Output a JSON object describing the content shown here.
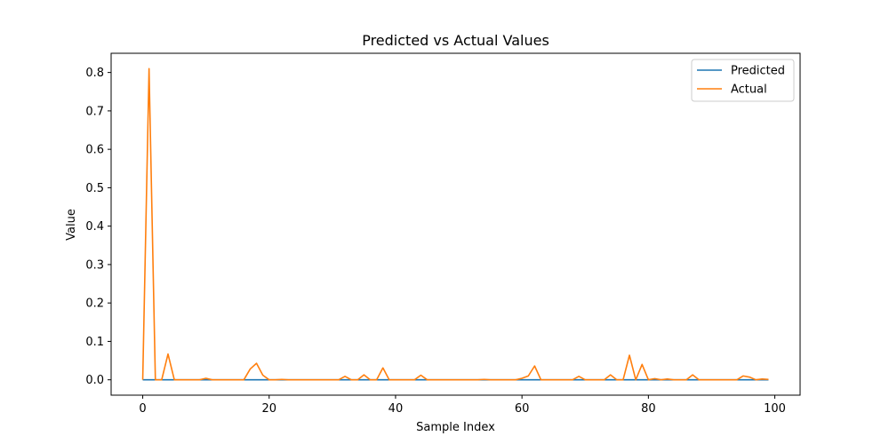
{
  "chart_data": {
    "type": "line",
    "title": "Predicted vs Actual Values",
    "xlabel": "Sample Index",
    "ylabel": "Value",
    "xlim": [
      -5,
      104
    ],
    "ylim": [
      -0.04,
      0.85
    ],
    "xticks": [
      0,
      20,
      40,
      60,
      80,
      100
    ],
    "xtick_labels": [
      "0",
      "20",
      "40",
      "60",
      "80",
      "100"
    ],
    "yticks": [
      0.0,
      0.1,
      0.2,
      0.3,
      0.4,
      0.5,
      0.6,
      0.7,
      0.8
    ],
    "ytick_labels": [
      "0.0",
      "0.1",
      "0.2",
      "0.3",
      "0.4",
      "0.5",
      "0.6",
      "0.7",
      "0.8"
    ],
    "grid": false,
    "legend_position": "top-right",
    "series": [
      {
        "name": "Predicted",
        "color": "#1f77b4",
        "x": [
          0,
          99
        ],
        "y": [
          0,
          0
        ]
      },
      {
        "name": "Actual",
        "color": "#ff7f0e",
        "x": [
          0,
          1,
          2,
          3,
          4,
          5,
          6,
          7,
          8,
          9,
          10,
          11,
          12,
          13,
          14,
          15,
          16,
          17,
          18,
          19,
          20,
          21,
          22,
          23,
          24,
          25,
          26,
          27,
          28,
          29,
          30,
          31,
          32,
          33,
          34,
          35,
          36,
          37,
          38,
          39,
          40,
          41,
          42,
          43,
          44,
          45,
          46,
          47,
          48,
          49,
          50,
          51,
          52,
          53,
          54,
          55,
          56,
          57,
          58,
          59,
          60,
          61,
          62,
          63,
          64,
          65,
          66,
          67,
          68,
          69,
          70,
          71,
          72,
          73,
          74,
          75,
          76,
          77,
          78,
          79,
          80,
          81,
          82,
          83,
          84,
          85,
          86,
          87,
          88,
          89,
          90,
          91,
          92,
          93,
          94,
          95,
          96,
          97,
          98,
          99
        ],
        "y": [
          0.0,
          0.81,
          0.0,
          0.0,
          0.067,
          0.0,
          0.0,
          0.0,
          0.0,
          0.0,
          0.004,
          0.0,
          0.0,
          0.0,
          0.0,
          0.0,
          0.0,
          0.028,
          0.043,
          0.012,
          0.0,
          0.0,
          0.001,
          0.0,
          0.0,
          0.0,
          0.0,
          0.0,
          0.0,
          0.0,
          0.0,
          0.0,
          0.009,
          0.0,
          0.0,
          0.013,
          0.0,
          0.0,
          0.031,
          0.0,
          0.0,
          0.0,
          0.0,
          0.0,
          0.012,
          0.0,
          0.0,
          0.0,
          0.0,
          0.0,
          0.0,
          0.0,
          0.0,
          0.0,
          0.001,
          0.0,
          0.0,
          0.0,
          0.0,
          0.0,
          0.004,
          0.01,
          0.036,
          0.0,
          0.0,
          0.0,
          0.0,
          0.0,
          0.0,
          0.009,
          0.0,
          0.0,
          0.0,
          0.0,
          0.013,
          0.0,
          0.0,
          0.064,
          0.0,
          0.04,
          0.0,
          0.003,
          0.0,
          0.002,
          0.0,
          0.0,
          0.0,
          0.013,
          0.0,
          0.0,
          0.0,
          0.0,
          0.0,
          0.0,
          0.0,
          0.01,
          0.007,
          0.0,
          0.002,
          0.001
        ]
      }
    ]
  }
}
